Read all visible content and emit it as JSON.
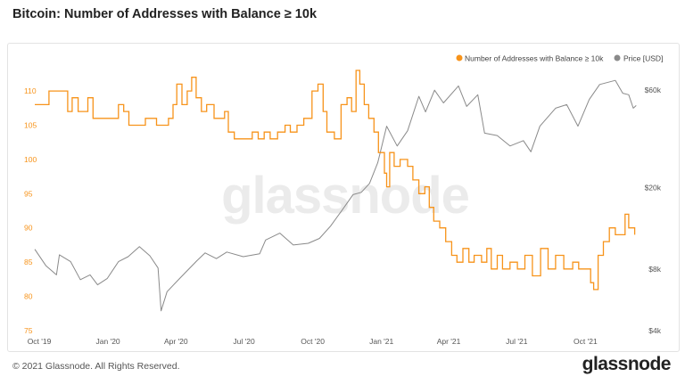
{
  "page": {
    "title": "Bitcoin: Number of Addresses with Balance ≥ 10k",
    "copyright": "© 2021 Glassnode. All Rights Reserved.",
    "brand": "glassnode",
    "watermark": "glassnode"
  },
  "colors": {
    "addresses": "#f7931a",
    "price": "#8a8a8a",
    "left_axis_text": "#f7931a",
    "right_axis_text": "#555555",
    "watermark": "#ebebeb"
  },
  "chart_data": {
    "type": "line",
    "title": "Bitcoin: Number of Addresses with Balance ≥ 10k",
    "x_axis": {
      "type": "date",
      "range": [
        "2019-09-25",
        "2021-12-10"
      ],
      "ticks": [
        {
          "label": "Oct '19",
          "date": "2019-10-01"
        },
        {
          "label": "Jan '20",
          "date": "2020-01-01"
        },
        {
          "label": "Apr '20",
          "date": "2020-04-01"
        },
        {
          "label": "Jul '20",
          "date": "2020-07-01"
        },
        {
          "label": "Oct '20",
          "date": "2020-10-01"
        },
        {
          "label": "Jan '21",
          "date": "2021-01-01"
        },
        {
          "label": "Apr '21",
          "date": "2021-04-01"
        },
        {
          "label": "Jul '21",
          "date": "2021-07-01"
        },
        {
          "label": "Oct '21",
          "date": "2021-10-01"
        }
      ]
    },
    "y_left": {
      "range": [
        75,
        113
      ],
      "ticks": [
        75,
        80,
        85,
        90,
        95,
        100,
        105,
        110
      ],
      "tick_labels": [
        "75",
        "80",
        "85",
        "90",
        "95",
        "100",
        "105",
        "110"
      ]
    },
    "y_right": {
      "scale": "log",
      "range": [
        4000,
        75000
      ],
      "ticks": [
        4000,
        8000,
        20000,
        60000
      ],
      "tick_labels": [
        "$4k",
        "$8k",
        "$20k",
        "$60k"
      ]
    },
    "legend": {
      "position": "top-right",
      "items": [
        "Number of Addresses with Balance ≥ 10k",
        "Price [USD]"
      ]
    },
    "grid": false,
    "series": [
      {
        "name": "Number of Addresses with Balance ≥ 10k",
        "axis": "left",
        "color": "#f7931a",
        "points": [
          [
            "2019-09-25",
            108
          ],
          [
            "2019-10-08",
            108
          ],
          [
            "2019-10-14",
            110
          ],
          [
            "2019-10-28",
            110
          ],
          [
            "2019-11-08",
            107
          ],
          [
            "2019-11-14",
            109
          ],
          [
            "2019-11-22",
            107
          ],
          [
            "2019-12-05",
            109
          ],
          [
            "2019-12-12",
            106
          ],
          [
            "2020-01-10",
            106
          ],
          [
            "2020-01-15",
            108
          ],
          [
            "2020-01-22",
            107
          ],
          [
            "2020-01-29",
            105
          ],
          [
            "2020-02-14",
            105
          ],
          [
            "2020-02-20",
            106
          ],
          [
            "2020-03-06",
            105
          ],
          [
            "2020-03-16",
            105
          ],
          [
            "2020-03-22",
            106
          ],
          [
            "2020-03-28",
            108
          ],
          [
            "2020-04-02",
            111
          ],
          [
            "2020-04-09",
            108
          ],
          [
            "2020-04-16",
            110
          ],
          [
            "2020-04-22",
            112
          ],
          [
            "2020-04-28",
            109
          ],
          [
            "2020-05-05",
            107
          ],
          [
            "2020-05-12",
            108
          ],
          [
            "2020-05-22",
            106
          ],
          [
            "2020-06-05",
            107
          ],
          [
            "2020-06-10",
            104
          ],
          [
            "2020-06-18",
            103
          ],
          [
            "2020-07-01",
            103
          ],
          [
            "2020-07-12",
            104
          ],
          [
            "2020-07-20",
            103
          ],
          [
            "2020-07-28",
            104
          ],
          [
            "2020-08-05",
            103
          ],
          [
            "2020-08-15",
            104
          ],
          [
            "2020-08-25",
            105
          ],
          [
            "2020-09-01",
            104
          ],
          [
            "2020-09-10",
            105
          ],
          [
            "2020-09-19",
            106
          ],
          [
            "2020-09-24",
            106
          ],
          [
            "2020-09-30",
            110
          ],
          [
            "2020-10-08",
            111
          ],
          [
            "2020-10-15",
            107
          ],
          [
            "2020-10-20",
            104
          ],
          [
            "2020-10-30",
            103
          ],
          [
            "2020-11-08",
            108
          ],
          [
            "2020-11-16",
            109
          ],
          [
            "2020-11-22",
            107
          ],
          [
            "2020-11-28",
            113
          ],
          [
            "2020-12-03",
            111
          ],
          [
            "2020-12-09",
            108
          ],
          [
            "2020-12-15",
            106
          ],
          [
            "2020-12-22",
            104
          ],
          [
            "2020-12-28",
            101
          ],
          [
            "2021-01-05",
            98
          ],
          [
            "2021-01-08",
            96
          ],
          [
            "2021-01-12",
            101
          ],
          [
            "2021-01-18",
            99
          ],
          [
            "2021-01-26",
            100
          ],
          [
            "2021-02-05",
            99
          ],
          [
            "2021-02-12",
            97
          ],
          [
            "2021-02-20",
            95
          ],
          [
            "2021-02-28",
            96
          ],
          [
            "2021-03-06",
            93
          ],
          [
            "2021-03-12",
            91
          ],
          [
            "2021-03-20",
            90
          ],
          [
            "2021-03-28",
            88
          ],
          [
            "2021-04-05",
            86
          ],
          [
            "2021-04-12",
            85
          ],
          [
            "2021-04-20",
            87
          ],
          [
            "2021-04-28",
            85
          ],
          [
            "2021-05-05",
            86
          ],
          [
            "2021-05-15",
            85
          ],
          [
            "2021-05-22",
            87
          ],
          [
            "2021-05-28",
            84
          ],
          [
            "2021-06-05",
            86
          ],
          [
            "2021-06-12",
            84
          ],
          [
            "2021-06-22",
            85
          ],
          [
            "2021-07-02",
            84
          ],
          [
            "2021-07-12",
            86
          ],
          [
            "2021-07-22",
            83
          ],
          [
            "2021-08-02",
            87
          ],
          [
            "2021-08-12",
            84
          ],
          [
            "2021-08-22",
            86
          ],
          [
            "2021-09-02",
            84
          ],
          [
            "2021-09-14",
            85
          ],
          [
            "2021-09-22",
            84
          ],
          [
            "2021-09-30",
            84
          ],
          [
            "2021-10-08",
            82
          ],
          [
            "2021-10-12",
            81
          ],
          [
            "2021-10-18",
            86
          ],
          [
            "2021-10-25",
            88
          ],
          [
            "2021-11-02",
            90
          ],
          [
            "2021-11-10",
            89
          ],
          [
            "2021-11-18",
            89
          ],
          [
            "2021-11-23",
            92
          ],
          [
            "2021-11-28",
            90
          ],
          [
            "2021-12-02",
            90
          ],
          [
            "2021-12-06",
            89
          ]
        ]
      },
      {
        "name": "Price [USD]",
        "axis": "right",
        "color": "#8a8a8a",
        "points": [
          [
            "2019-09-25",
            10000
          ],
          [
            "2019-10-10",
            8300
          ],
          [
            "2019-10-24",
            7500
          ],
          [
            "2019-10-28",
            9400
          ],
          [
            "2019-11-12",
            8700
          ],
          [
            "2019-11-25",
            7100
          ],
          [
            "2019-12-08",
            7500
          ],
          [
            "2019-12-18",
            6700
          ],
          [
            "2019-12-31",
            7200
          ],
          [
            "2020-01-15",
            8700
          ],
          [
            "2020-01-28",
            9200
          ],
          [
            "2020-02-12",
            10300
          ],
          [
            "2020-02-26",
            9300
          ],
          [
            "2020-03-08",
            8100
          ],
          [
            "2020-03-12",
            5000
          ],
          [
            "2020-03-20",
            6200
          ],
          [
            "2020-04-06",
            7200
          ],
          [
            "2020-04-29",
            8800
          ],
          [
            "2020-05-10",
            9600
          ],
          [
            "2020-05-25",
            9000
          ],
          [
            "2020-06-08",
            9700
          ],
          [
            "2020-06-30",
            9200
          ],
          [
            "2020-07-22",
            9500
          ],
          [
            "2020-07-30",
            11100
          ],
          [
            "2020-08-18",
            12000
          ],
          [
            "2020-09-05",
            10500
          ],
          [
            "2020-09-25",
            10700
          ],
          [
            "2020-10-10",
            11300
          ],
          [
            "2020-10-25",
            13000
          ],
          [
            "2020-11-08",
            15300
          ],
          [
            "2020-11-24",
            18500
          ],
          [
            "2020-12-05",
            19000
          ],
          [
            "2020-12-16",
            21000
          ],
          [
            "2020-12-27",
            26500
          ],
          [
            "2021-01-08",
            40000
          ],
          [
            "2021-01-22",
            32000
          ],
          [
            "2021-02-05",
            38000
          ],
          [
            "2021-02-20",
            56000
          ],
          [
            "2021-03-01",
            47000
          ],
          [
            "2021-03-13",
            60000
          ],
          [
            "2021-03-25",
            52000
          ],
          [
            "2021-04-14",
            63000
          ],
          [
            "2021-04-25",
            50000
          ],
          [
            "2021-05-10",
            57000
          ],
          [
            "2021-05-19",
            37000
          ],
          [
            "2021-06-05",
            36000
          ],
          [
            "2021-06-22",
            32000
          ],
          [
            "2021-07-10",
            34000
          ],
          [
            "2021-07-20",
            30000
          ],
          [
            "2021-08-01",
            40000
          ],
          [
            "2021-08-22",
            49000
          ],
          [
            "2021-09-06",
            51000
          ],
          [
            "2021-09-21",
            40000
          ],
          [
            "2021-10-06",
            54000
          ],
          [
            "2021-10-20",
            64000
          ],
          [
            "2021-11-10",
            67000
          ],
          [
            "2021-11-20",
            58000
          ],
          [
            "2021-11-28",
            57000
          ],
          [
            "2021-12-04",
            49000
          ],
          [
            "2021-12-08",
            50500
          ]
        ]
      }
    ]
  }
}
